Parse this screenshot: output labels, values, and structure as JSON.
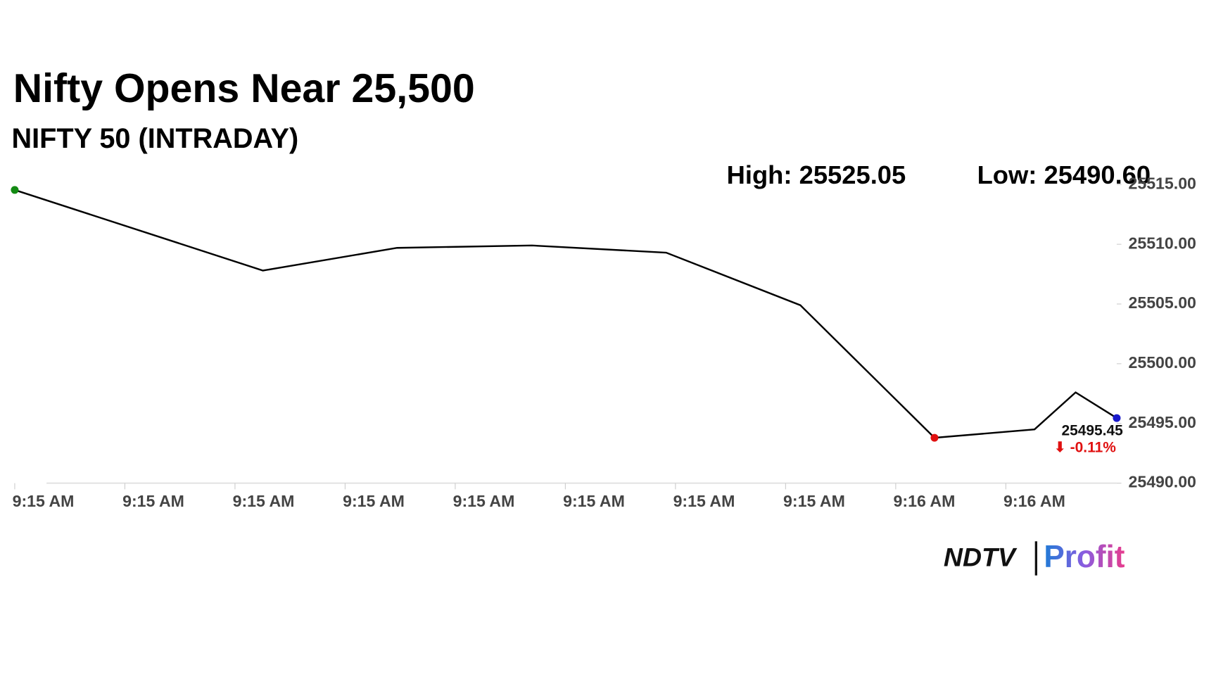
{
  "chart_data": {
    "type": "line",
    "title": "Nifty Opens Near 25,500",
    "subtitle": "NIFTY 50 (INTRADAY)",
    "high_label": "High: 25525.05",
    "low_label": "Low: 25490.60",
    "change_label": "⬇ -0.11%",
    "categories": [
      "9:15 AM",
      "9:15 AM",
      "9:15 AM",
      "9:15 AM",
      "9:15 AM",
      "9:15 AM",
      "9:15 AM",
      "9:15 AM",
      "9:16 AM",
      "9:16 AM"
    ],
    "series": [
      {
        "name": "NIFTY 50",
        "color": "#000000",
        "values": [
          25514.55,
          25507.8,
          25509.7,
          25509.9,
          25509.3,
          25504.9,
          25493.8,
          25494.5,
          25497.6,
          25495.45
        ]
      }
    ],
    "ylim": [
      25490,
      25515
    ],
    "yticks": [
      {
        "value": 25490,
        "label": "25490.00"
      },
      {
        "value": 25495,
        "label": "25495.00"
      },
      {
        "value": 25500,
        "label": "25500.00"
      },
      {
        "value": 25505,
        "label": "25505.00"
      },
      {
        "value": 25510,
        "label": "25510.00"
      },
      {
        "value": 25515,
        "label": "25515.00"
      }
    ],
    "marker_colors": {
      "first": "#138a13",
      "low": "#e01010",
      "last": "#1a1acc"
    },
    "change_color": "#e01010",
    "logo": {
      "left": "NDTV",
      "right": "Profit"
    }
  }
}
